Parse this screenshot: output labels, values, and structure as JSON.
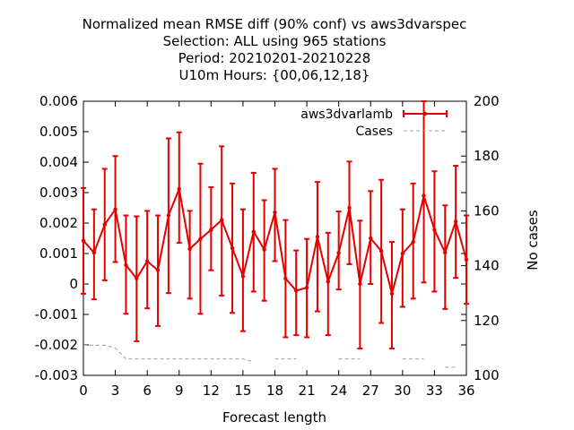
{
  "chart_data": {
    "type": "line",
    "title_lines": [
      "Normalized mean RMSE diff (90% conf) vs aws3dvarspec",
      "Selection: ALL using   965 stations",
      "Period: 20210201-20210228",
      "U10m   Hours: {00,06,12,18}"
    ],
    "xlabel": "Forecast length",
    "ylabel": "",
    "y2label": "No cases",
    "xlim": [
      0,
      36
    ],
    "ylim": [
      -0.003,
      0.006
    ],
    "y2lim": [
      100,
      200
    ],
    "x_ticks": [
      "0",
      "3",
      "6",
      "9",
      "12",
      "15",
      "18",
      "21",
      "24",
      "27",
      "30",
      "33",
      "36"
    ],
    "y_ticks": [
      "-0.003",
      "-0.002",
      "-0.001",
      "0",
      "0.001",
      "0.002",
      "0.003",
      "0.004",
      "0.005",
      "0.006"
    ],
    "y2_ticks": [
      "100",
      "120",
      "140",
      "160",
      "180",
      "200"
    ],
    "grid": false,
    "legend_position": "top-right",
    "series": [
      {
        "name": "aws3dvarlamb",
        "color": "#e50000",
        "x": [
          0,
          1,
          2,
          3,
          4,
          5,
          6,
          7,
          8,
          9,
          10,
          11,
          12,
          13,
          14,
          15,
          16,
          17,
          18,
          19,
          20,
          21,
          22,
          23,
          24,
          25,
          26,
          27,
          28,
          29,
          30,
          31,
          32,
          33,
          34,
          35,
          36
        ],
        "values": [
          0.00142,
          0.00103,
          0.00195,
          0.00245,
          0.00062,
          0.00018,
          0.00075,
          0.00045,
          0.00225,
          0.00312,
          0.00115,
          0.00148,
          0.00178,
          0.0021,
          0.00118,
          0.00025,
          0.00172,
          0.00113,
          0.00235,
          0.00018,
          -0.00022,
          -0.00012,
          0.00155,
          8e-05,
          0.00102,
          0.0025,
          0.0,
          0.0015,
          0.00108,
          -0.00032,
          0.001,
          0.00138,
          0.0029,
          0.00178,
          0.00103,
          0.00205,
          0.0008
        ],
        "err_low": [
          -0.00032,
          -0.0005,
          0.00012,
          0.00072,
          -0.00098,
          -0.00188,
          -0.0008,
          -0.00138,
          -0.0003,
          0.00135,
          -0.00048,
          -0.00098,
          0.00045,
          -0.00038,
          -0.00095,
          -0.00155,
          -0.00025,
          -0.00055,
          0.00075,
          -0.00175,
          -0.00168,
          -0.00175,
          -0.0009,
          -0.00168,
          -0.00018,
          0.00065,
          -0.00212,
          0.0,
          -0.00128,
          -0.00212,
          -0.00075,
          -0.00048,
          5e-05,
          -0.00025,
          -0.00082,
          0.0002,
          -0.00065
        ],
        "err_high": [
          0.00315,
          0.00245,
          0.00378,
          0.0042,
          0.00225,
          0.00222,
          0.0024,
          0.00225,
          0.00478,
          0.00498,
          0.0024,
          0.00395,
          0.00318,
          0.00452,
          0.0033,
          0.00245,
          0.00365,
          0.00275,
          0.00378,
          0.0021,
          0.0011,
          0.00148,
          0.00335,
          0.00168,
          0.00238,
          0.00402,
          0.00208,
          0.00305,
          0.00342,
          0.00138,
          0.00245,
          0.0033,
          0.006,
          0.0037,
          0.00258,
          0.00388,
          0.00225
        ]
      },
      {
        "name": "Cases",
        "color": "#a0a0a0",
        "axis": "y2",
        "x": [
          0,
          1,
          2,
          3,
          4,
          5,
          6,
          7,
          8,
          9,
          10,
          11,
          12,
          13,
          14,
          15,
          16,
          17,
          18,
          19,
          20,
          21,
          22,
          23,
          24,
          25,
          26,
          27,
          28,
          29,
          30,
          31,
          32,
          33,
          34,
          35,
          36
        ],
        "values": [
          111,
          111,
          111,
          110,
          106,
          106,
          106,
          106,
          106,
          106,
          106,
          106,
          106,
          106,
          106,
          106,
          105,
          null,
          106,
          106,
          106,
          null,
          105,
          null,
          106,
          106,
          106,
          null,
          104,
          null,
          106,
          106,
          106,
          null,
          103,
          103,
          null
        ]
      }
    ]
  }
}
